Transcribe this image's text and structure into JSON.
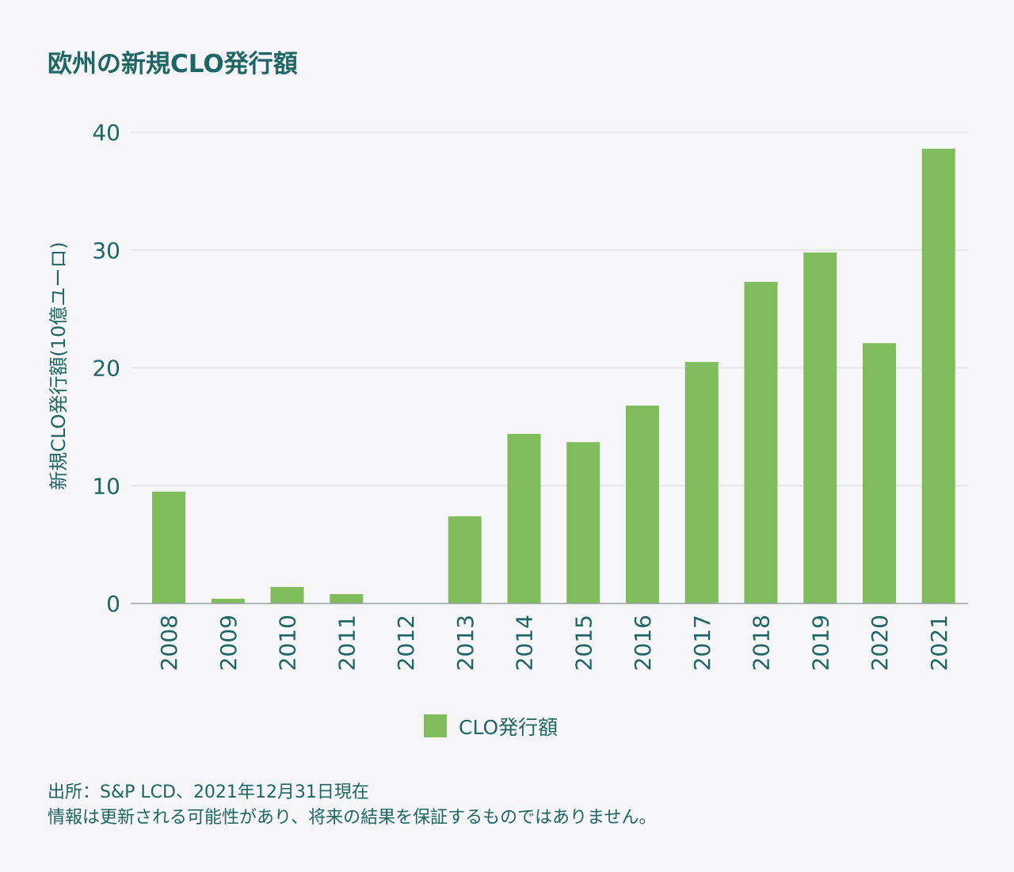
{
  "chart_data": {
    "type": "bar",
    "title": "欧州の新規CLO発行額",
    "ylabel": "新規CLO発行額(10億ユーロ)",
    "xlabel": "",
    "categories": [
      "2008",
      "2009",
      "2010",
      "2011",
      "2012",
      "2013",
      "2014",
      "2015",
      "2016",
      "2017",
      "2018",
      "2019",
      "2020",
      "2021"
    ],
    "series": [
      {
        "name": "CLO発行額",
        "values": [
          9.5,
          0.4,
          1.4,
          0.8,
          0,
          7.4,
          14.4,
          13.7,
          16.8,
          20.5,
          27.3,
          29.8,
          22.1,
          38.6
        ],
        "color": "#7fbd5c"
      }
    ],
    "ylim": [
      0,
      40
    ],
    "yticks": [
      0,
      10,
      20,
      30,
      40
    ],
    "grid": true,
    "legend": "bottom-center"
  },
  "footnote": {
    "line1": "出所：S&P LCD、2021年12月31日現在",
    "line2": "情報は更新される可能性があり、将来の結果を保証するものではありません。"
  }
}
